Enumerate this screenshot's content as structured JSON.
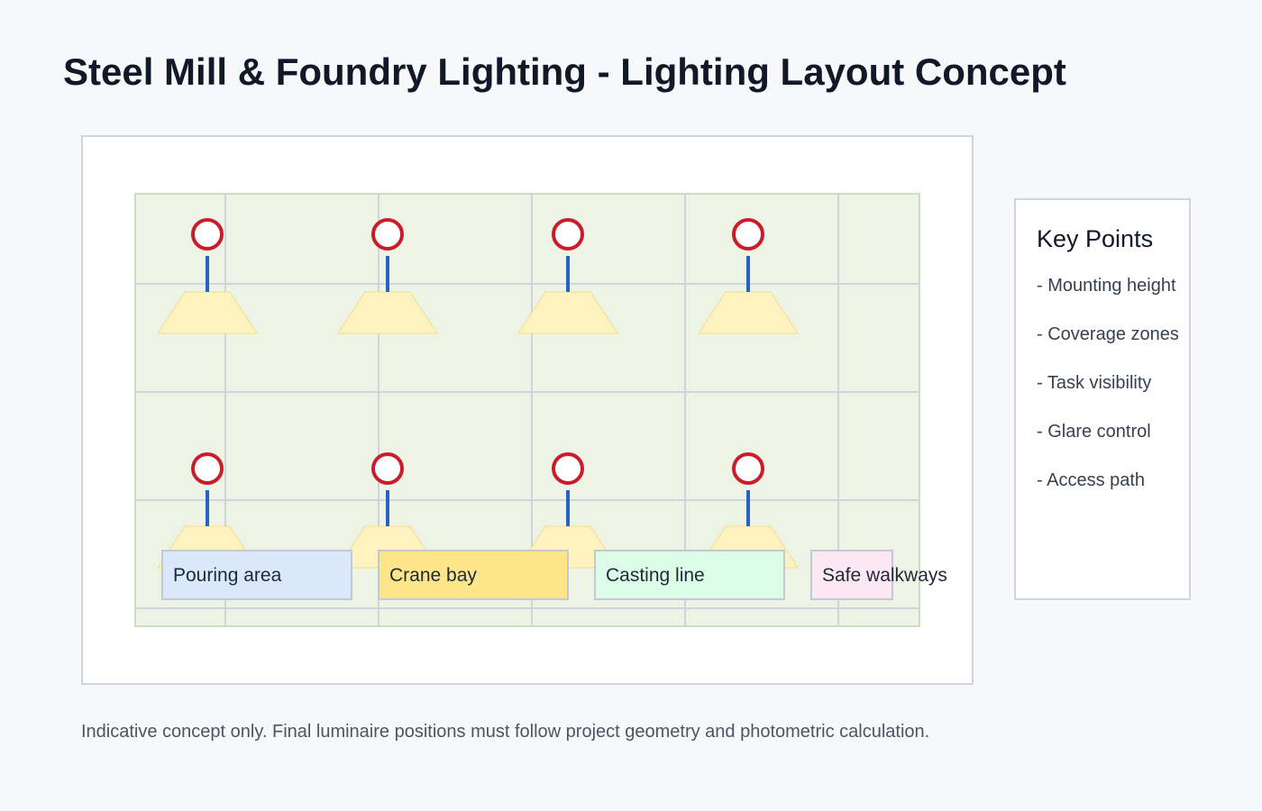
{
  "page_title": "Steel Mill & Foundry Lighting - Lighting Layout Concept",
  "colors": {
    "floor": "#edf4e5",
    "floor_border": "#cfdcc4",
    "grid": "#d1d5db",
    "fixture_ring": "#c81e2b",
    "fixture_stem": "#2563c4",
    "light_cone": "#fdf3c0",
    "light_cone_border": "#f2dc8c"
  },
  "fixtures": {
    "icon": "pendant-luminaire-icon",
    "rows": 2,
    "per_row": 4
  },
  "zones": [
    {
      "label": "Pouring area",
      "color": "#dbe8fb"
    },
    {
      "label": "Crane bay",
      "color": "#fde68a"
    },
    {
      "label": "Casting line",
      "color": "#dcfce7"
    },
    {
      "label": "Safe walkways",
      "color": "#fce7f3"
    }
  ],
  "key_points": {
    "title": "Key Points",
    "items": [
      "- Mounting height",
      "- Coverage zones",
      "- Task visibility",
      "- Glare control",
      "- Access path"
    ]
  },
  "footnote": "Indicative concept only. Final luminaire positions must follow project geometry and photometric calculation."
}
